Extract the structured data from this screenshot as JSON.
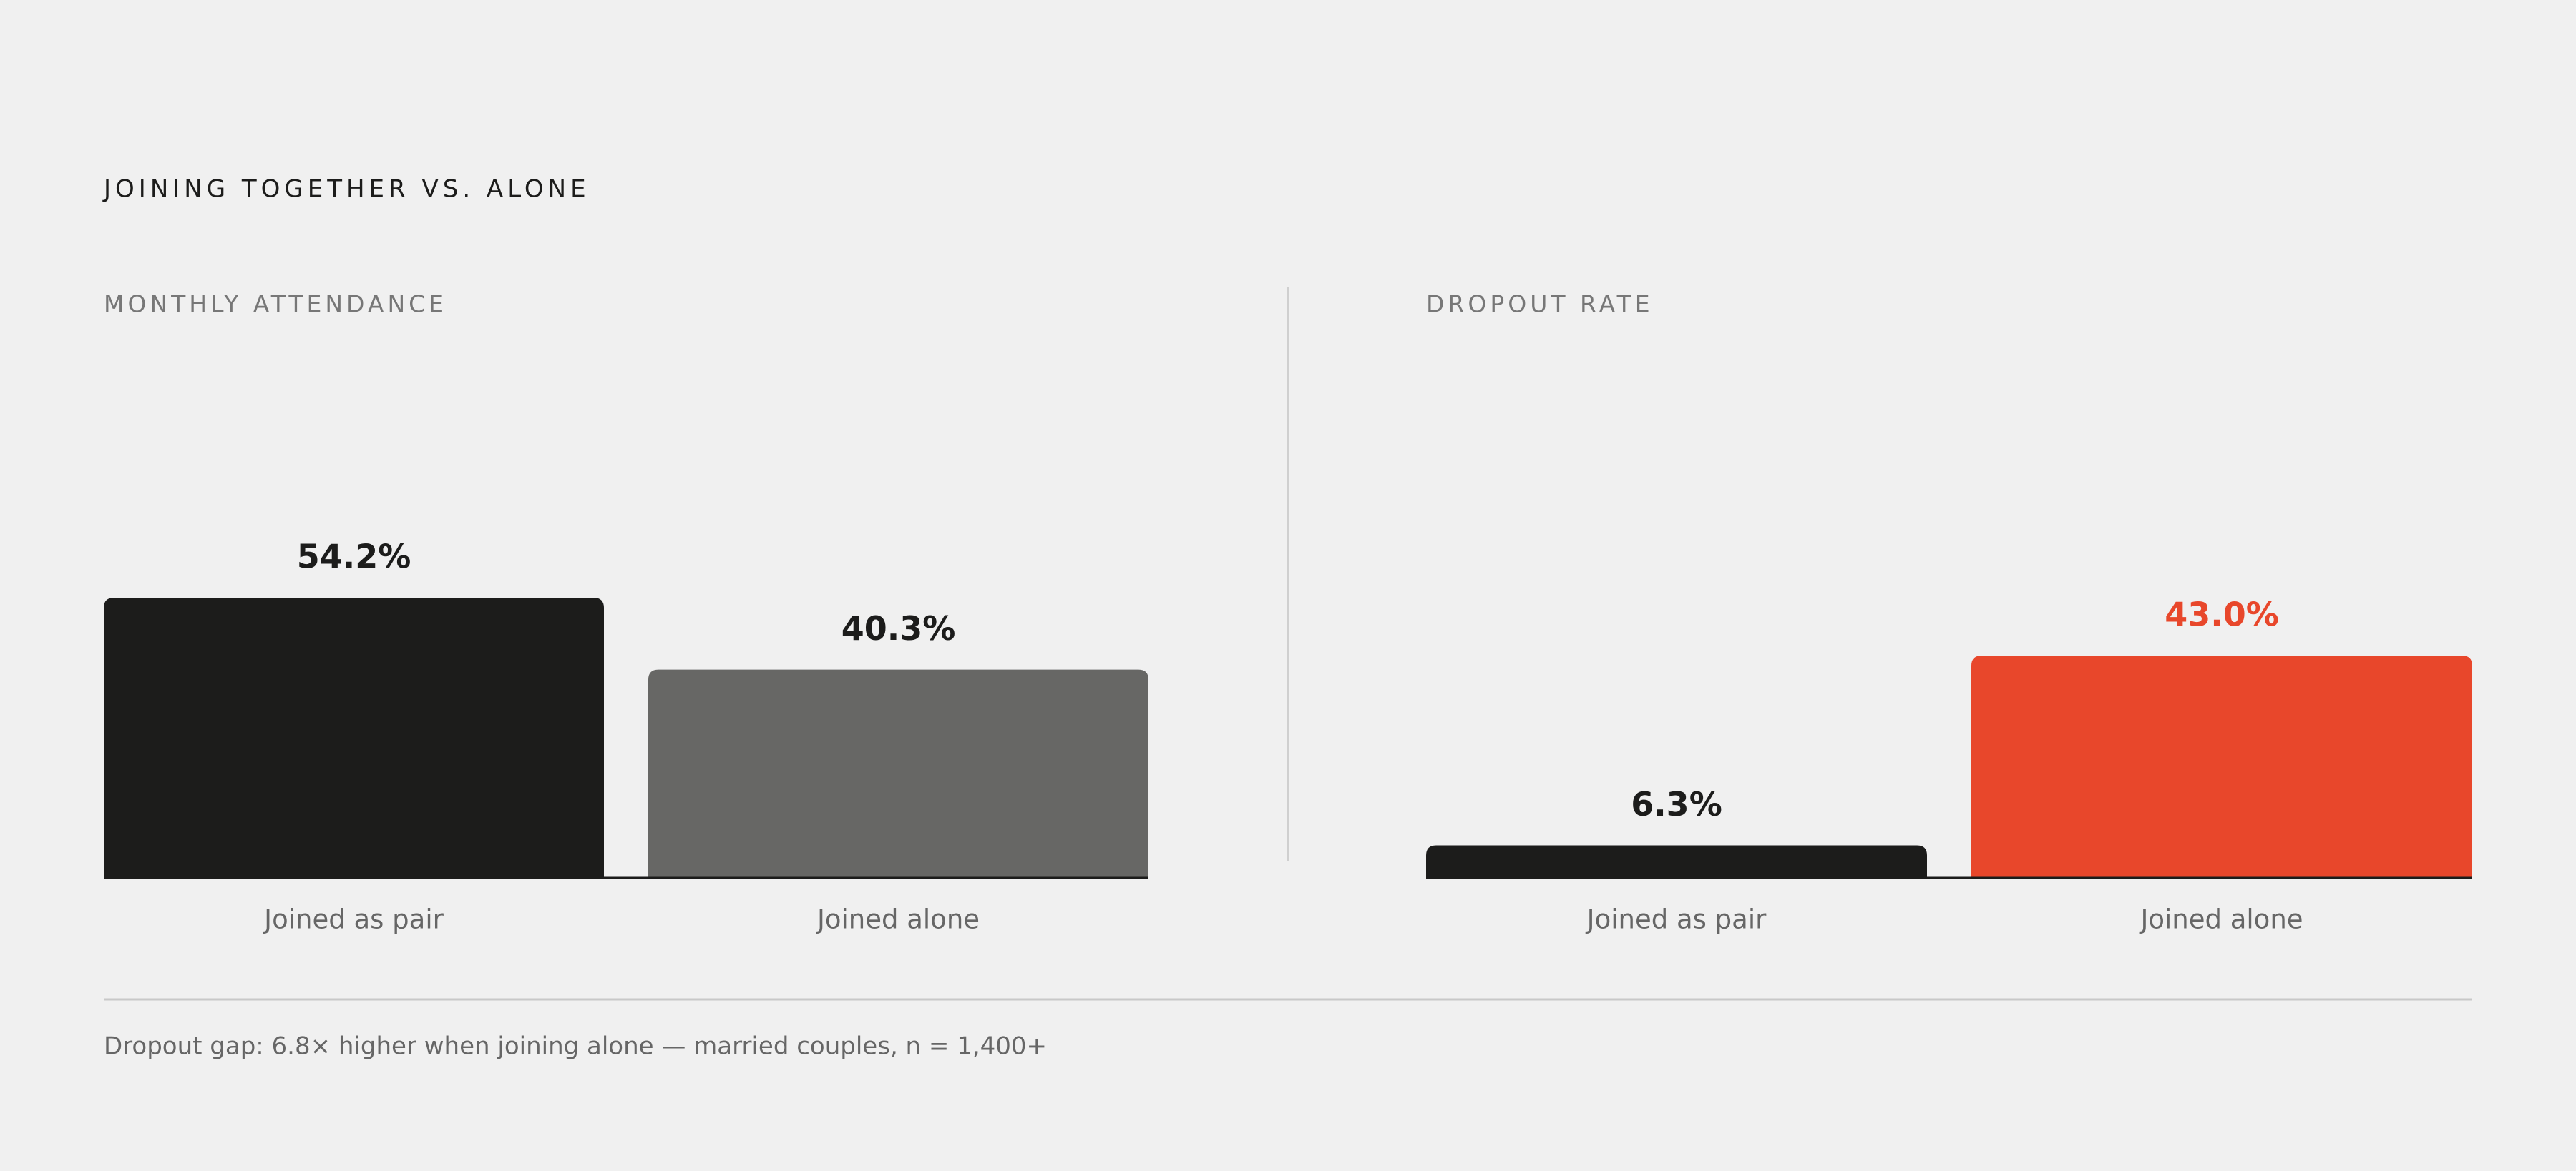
{
  "title": "JOINING TOGETHER VS. ALONE",
  "chart_data": [
    {
      "type": "bar",
      "title": "MONTHLY ATTENDANCE",
      "categories": [
        "Joined as pair",
        "Joined alone"
      ],
      "values": [
        54.2,
        40.3
      ],
      "value_labels": [
        "54.2%",
        "40.3%"
      ],
      "colors": [
        "#1c1c1b",
        "#676765"
      ],
      "label_colors": [
        "#1c1c1b",
        "#1c1c1b"
      ],
      "ylim": [
        0,
        100
      ]
    },
    {
      "type": "bar",
      "title": "DROPOUT RATE",
      "categories": [
        "Joined as pair",
        "Joined alone"
      ],
      "values": [
        6.3,
        43.0
      ],
      "value_labels": [
        "6.3%",
        "43.0%"
      ],
      "colors": [
        "#1c1c1b",
        "#e8472b"
      ],
      "label_colors": [
        "#1c1c1b",
        "#e8472b"
      ],
      "ylim": [
        0,
        100
      ]
    }
  ],
  "note": "Dropout gap: 6.8× higher when joining alone — married couples, n = 1,400+"
}
